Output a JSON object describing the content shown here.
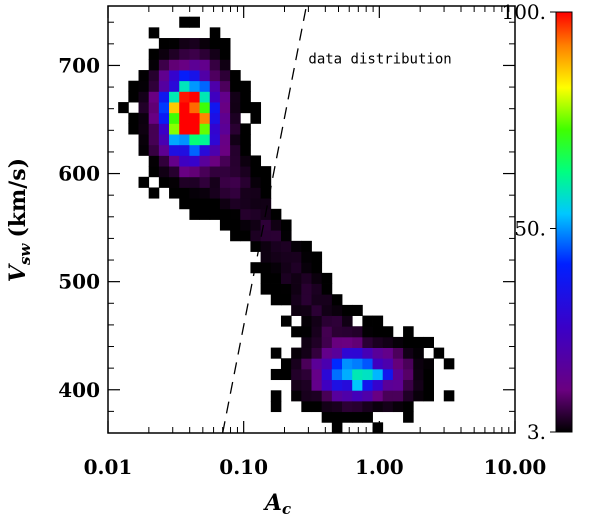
{
  "chart_data": {
    "type": "heatmap",
    "title": "",
    "xlabel_main": "A",
    "xlabel_sub": "c",
    "ylabel_main": "V",
    "ylabel_sub": "sw",
    "ylabel_unit": "(km/s)",
    "x_scale": "log",
    "xlim": [
      0.01,
      10.0
    ],
    "ylim": [
      360,
      755
    ],
    "x_tick_values": [
      0.01,
      0.1,
      1.0,
      10.0
    ],
    "x_tick_labels": [
      "0.01",
      "0.10",
      "1.00",
      "10.00"
    ],
    "y_tick_values": [
      400,
      500,
      600,
      700
    ],
    "y_tick_labels": [
      "400",
      "500",
      "600",
      "700"
    ],
    "colorbar": {
      "colormap": "rainbow",
      "min": 3,
      "max": 100,
      "tick_values": [
        3,
        50,
        100
      ],
      "tick_labels": [
        "3.",
        "50.",
        "100."
      ]
    },
    "annotation": {
      "text": "data distribution",
      "line_x": [
        0.07,
        0.29
      ],
      "line_y": [
        360,
        755
      ]
    },
    "density_peaks": [
      {
        "x": 0.04,
        "y": 655,
        "peak_count": 100
      },
      {
        "x": 0.7,
        "y": 415,
        "peak_count": 45
      }
    ]
  }
}
